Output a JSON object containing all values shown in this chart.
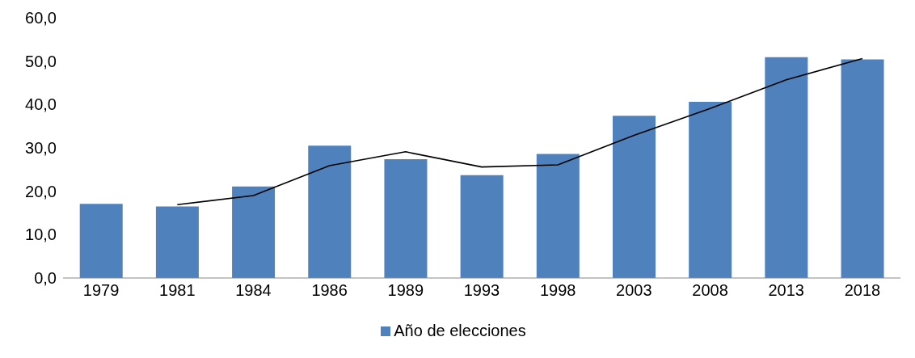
{
  "chart_data": {
    "type": "bar",
    "categories": [
      "1979",
      "1981",
      "1984",
      "1986",
      "1989",
      "1993",
      "1998",
      "2003",
      "2008",
      "2013",
      "2018"
    ],
    "series": [
      {
        "name": "Año de elecciones",
        "color": "#4f81bd",
        "values": [
          17.1,
          16.5,
          21.1,
          30.5,
          27.4,
          23.7,
          28.6,
          37.4,
          40.6,
          50.9,
          50.4
        ]
      },
      {
        "type": "line",
        "color": "#000000",
        "values": [
          null,
          16.9,
          19.0,
          25.9,
          29.1,
          25.6,
          26.1,
          32.9,
          39.1,
          45.7,
          50.6
        ]
      }
    ],
    "ylim": [
      0,
      60
    ],
    "yticks": [
      {
        "value": 0,
        "label": "0,0"
      },
      {
        "value": 10,
        "label": "10,0"
      },
      {
        "value": 20,
        "label": "20,0"
      },
      {
        "value": 30,
        "label": "30,0"
      },
      {
        "value": 40,
        "label": "40,0"
      },
      {
        "value": 50,
        "label": "50,0"
      },
      {
        "value": 60,
        "label": "60,0"
      }
    ],
    "grid": false,
    "legend": "bottom",
    "marker": "none"
  }
}
